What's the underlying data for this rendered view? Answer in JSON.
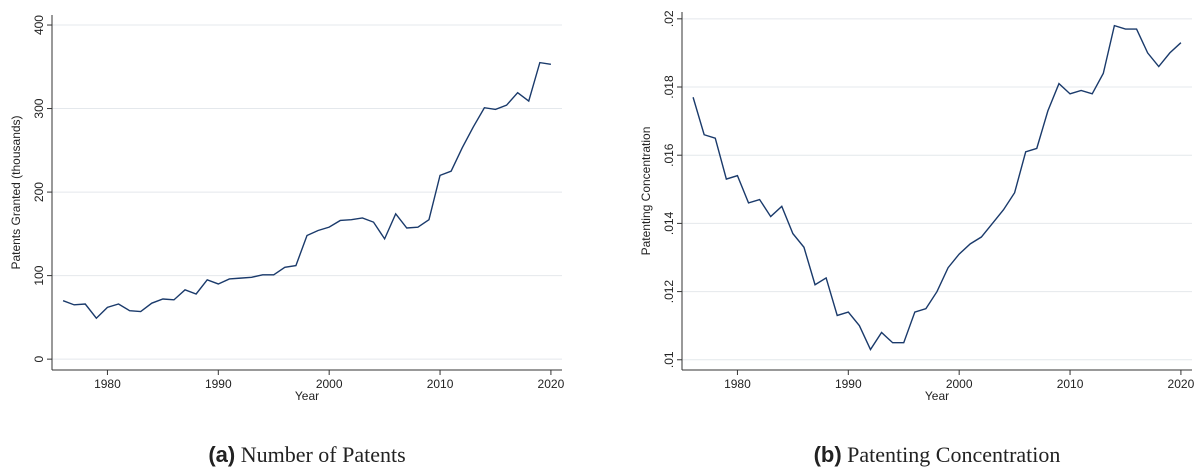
{
  "chart_data": [
    {
      "type": "line",
      "xlabel": "Year",
      "ylabel": "Patents Granted (thousands)",
      "caption_label": "(a)",
      "caption": "Number of Patents",
      "x": [
        1976,
        1977,
        1978,
        1979,
        1980,
        1981,
        1982,
        1983,
        1984,
        1985,
        1986,
        1987,
        1988,
        1989,
        1990,
        1991,
        1992,
        1993,
        1994,
        1995,
        1996,
        1997,
        1998,
        1999,
        2000,
        2001,
        2002,
        2003,
        2004,
        2005,
        2006,
        2007,
        2008,
        2009,
        2010,
        2011,
        2012,
        2013,
        2014,
        2015,
        2016,
        2017,
        2018,
        2019,
        2020
      ],
      "values": [
        70,
        65,
        66,
        49,
        62,
        66,
        58,
        57,
        67,
        72,
        71,
        83,
        78,
        95,
        90,
        96,
        97,
        98,
        101,
        101,
        110,
        112,
        148,
        154,
        158,
        166,
        167,
        169,
        164,
        144,
        174,
        157,
        158,
        167,
        220,
        225,
        253,
        278,
        301,
        299,
        304,
        319,
        309,
        355,
        353
      ],
      "color": "#1a3a6b",
      "xlim": [
        1975,
        2021
      ],
      "ylim": [
        -13,
        412
      ],
      "xticks": [
        1980,
        1990,
        2000,
        2010,
        2020
      ],
      "yticks": [
        0,
        100,
        200,
        300,
        400
      ],
      "grid": true
    },
    {
      "type": "line",
      "xlabel": "Year",
      "ylabel": "Patenting Concentration",
      "caption_label": "(b)",
      "caption": "Patenting Concentration",
      "x": [
        1976,
        1977,
        1978,
        1979,
        1980,
        1981,
        1982,
        1983,
        1984,
        1985,
        1986,
        1987,
        1988,
        1989,
        1990,
        1991,
        1992,
        1993,
        1994,
        1995,
        1996,
        1997,
        1998,
        1999,
        2000,
        2001,
        2002,
        2003,
        2004,
        2005,
        2006,
        2007,
        2008,
        2009,
        2010,
        2011,
        2012,
        2013,
        2014,
        2015,
        2016,
        2017,
        2018,
        2019,
        2020
      ],
      "values": [
        0.0177,
        0.0166,
        0.0165,
        0.0153,
        0.0154,
        0.0146,
        0.0147,
        0.0142,
        0.0145,
        0.0137,
        0.0133,
        0.0122,
        0.0124,
        0.0113,
        0.0114,
        0.011,
        0.0103,
        0.0108,
        0.0105,
        0.0105,
        0.0114,
        0.0115,
        0.012,
        0.0127,
        0.0131,
        0.0134,
        0.0136,
        0.014,
        0.0144,
        0.0149,
        0.0161,
        0.0162,
        0.0173,
        0.0181,
        0.0178,
        0.0179,
        0.0178,
        0.0184,
        0.0198,
        0.0197,
        0.0197,
        0.019,
        0.0186,
        0.019,
        0.0193
      ],
      "color": "#1a3a6b",
      "xlim": [
        1975,
        2021
      ],
      "ylim": [
        0.0097,
        0.0202
      ],
      "xticks": [
        1980,
        1990,
        2000,
        2010,
        2020
      ],
      "yticks": [
        {
          "value": 0.01,
          "label": ".01"
        },
        {
          "value": 0.012,
          "label": ".012"
        },
        {
          "value": 0.014,
          "label": ".014"
        },
        {
          "value": 0.016,
          "label": ".016"
        },
        {
          "value": 0.018,
          "label": ".018"
        },
        {
          "value": 0.02,
          "label": ".02"
        }
      ],
      "grid": true
    }
  ]
}
